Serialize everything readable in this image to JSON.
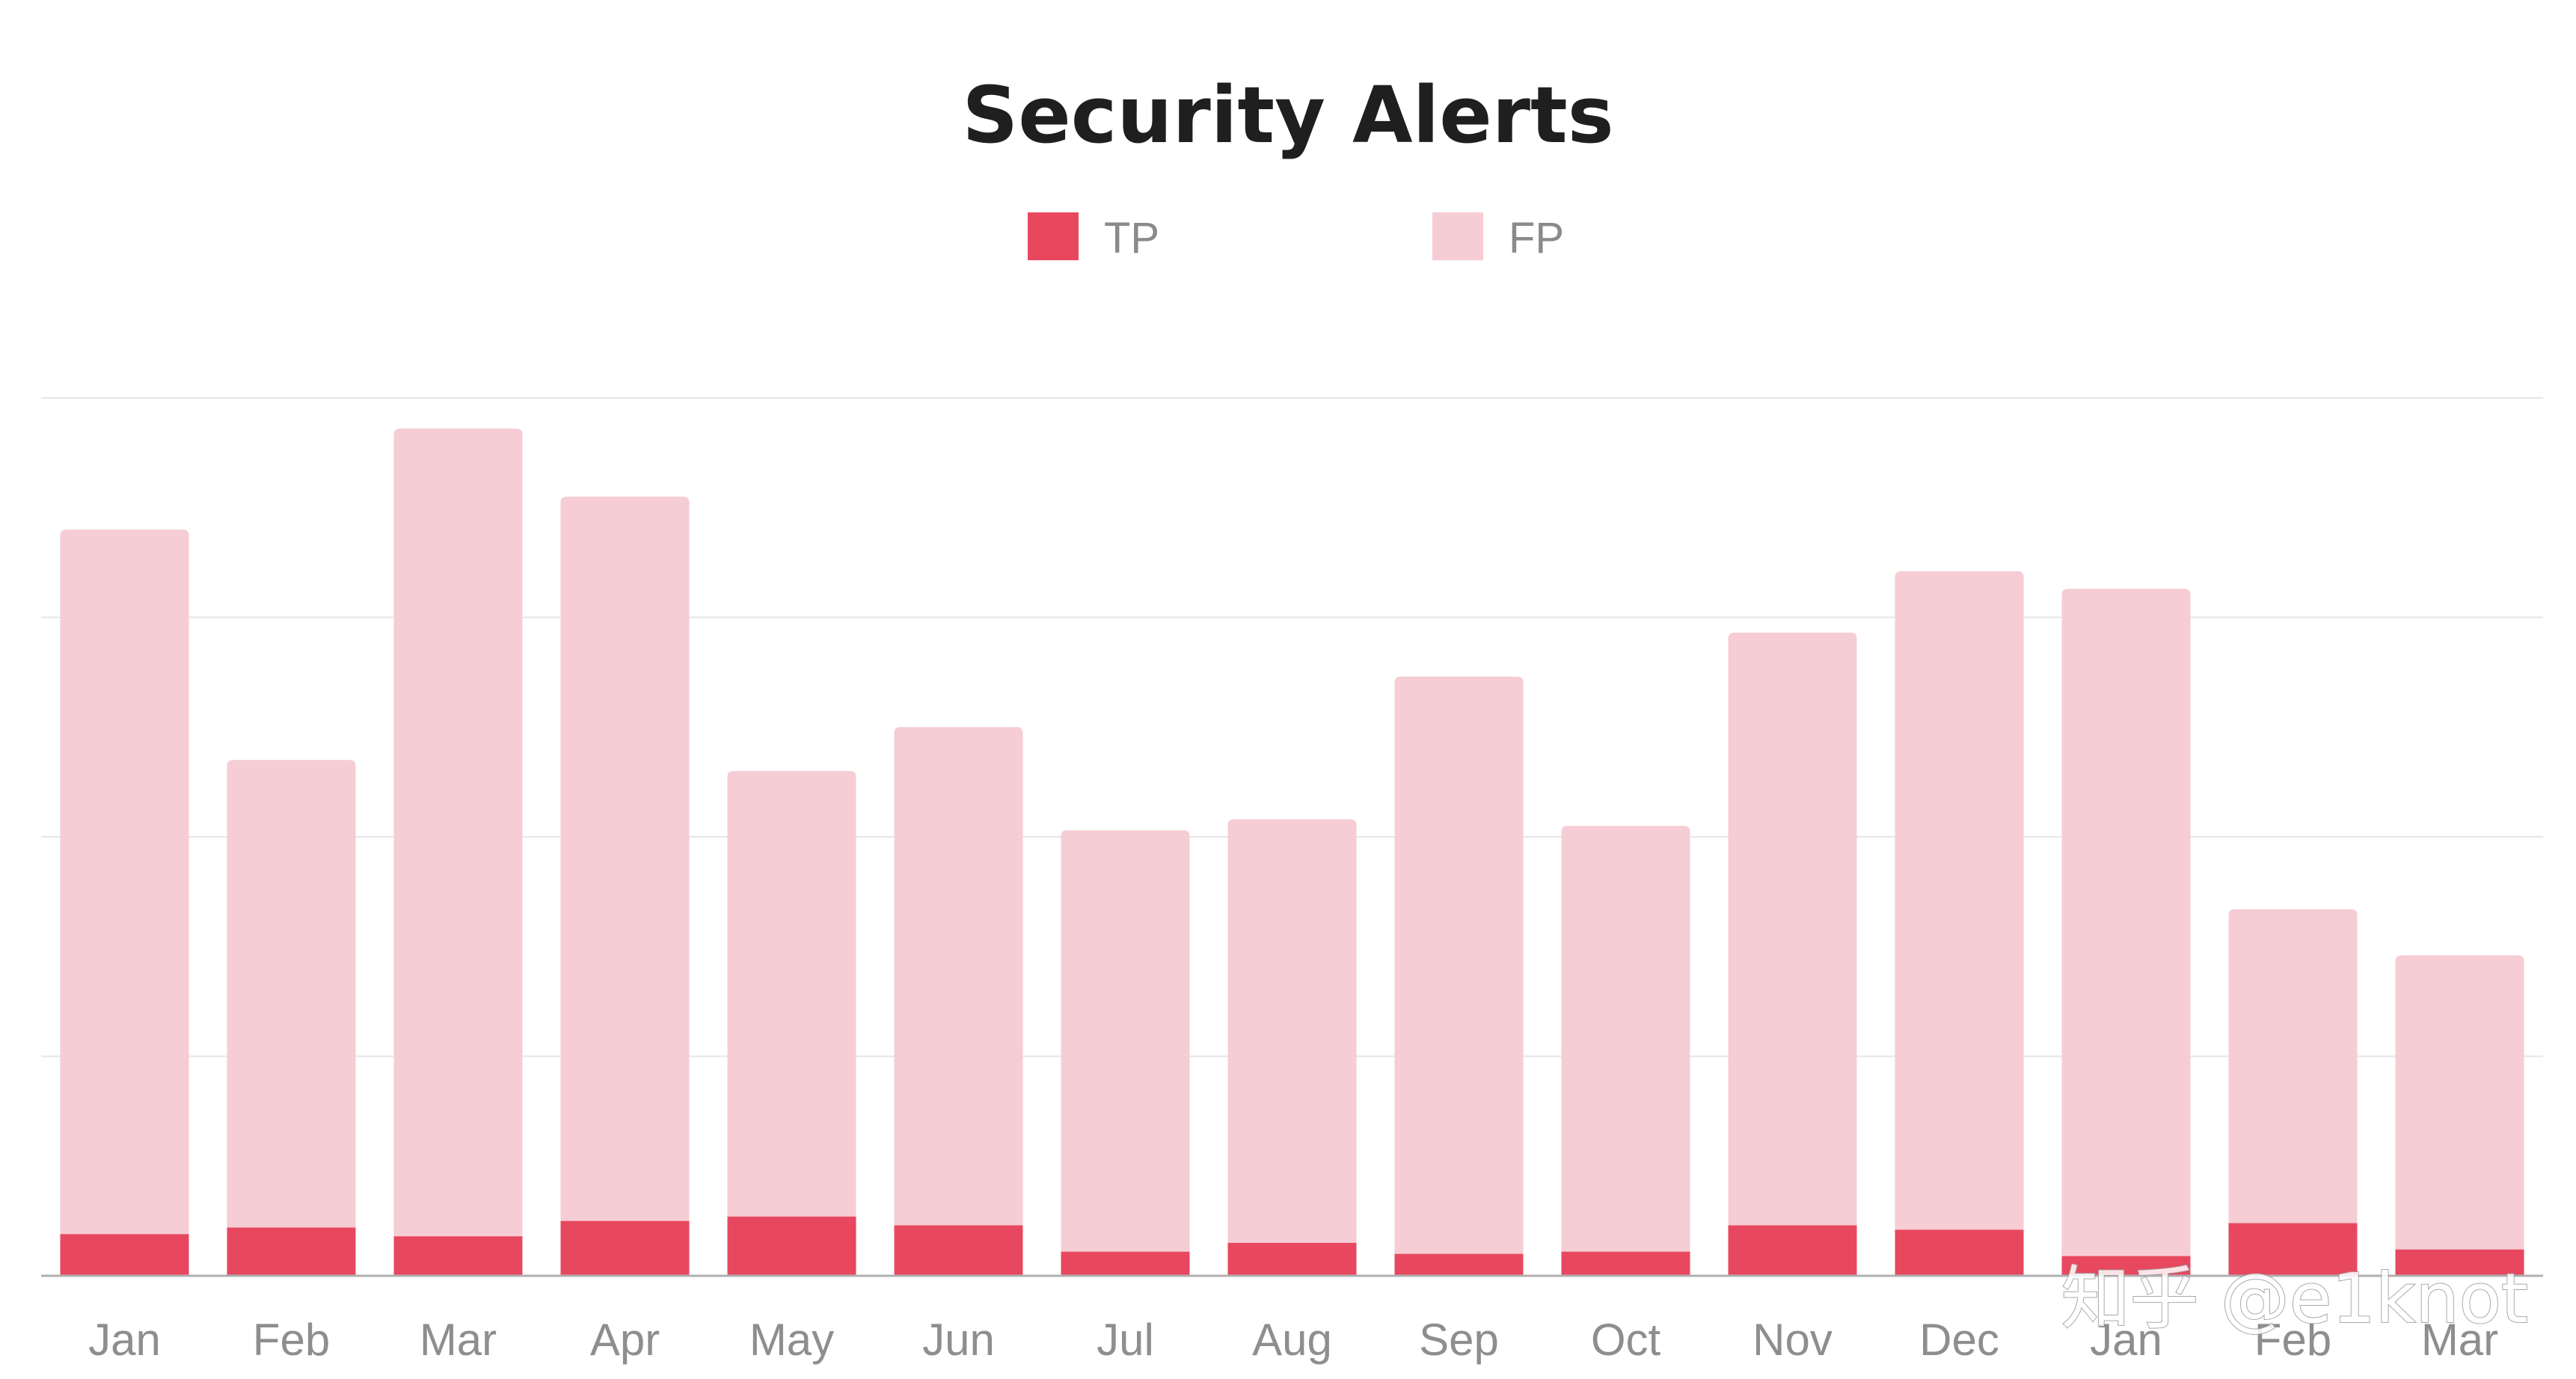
{
  "chart_data": {
    "type": "bar",
    "stacked": true,
    "title": "Security Alerts",
    "xlabel": "",
    "ylabel": "",
    "categories": [
      "Jan",
      "Feb",
      "Mar",
      "Apr",
      "May",
      "Jun",
      "Jul",
      "Aug",
      "Sep",
      "Oct",
      "Nov",
      "Dec",
      "Jan",
      "Feb",
      "Mar"
    ],
    "series": [
      {
        "name": "TP",
        "color": "#e8485f",
        "values": [
          0.19,
          0.22,
          0.18,
          0.25,
          0.27,
          0.23,
          0.11,
          0.15,
          0.1,
          0.11,
          0.23,
          0.21,
          0.09,
          0.24,
          0.12
        ]
      },
      {
        "name": "FP",
        "color": "#f6cdd4",
        "values": [
          3.21,
          2.13,
          3.68,
          3.3,
          2.03,
          2.27,
          1.92,
          1.93,
          2.63,
          1.94,
          2.7,
          3.0,
          3.04,
          1.43,
          1.34
        ]
      }
    ],
    "ylim": [
      0,
      4
    ],
    "grid": true,
    "legend_position": "top-center"
  },
  "colors": {
    "background": "#ffffff",
    "gridline": "#e6e6e6",
    "axis": "#b0b0b0"
  },
  "watermark": "知乎 @e1knot"
}
